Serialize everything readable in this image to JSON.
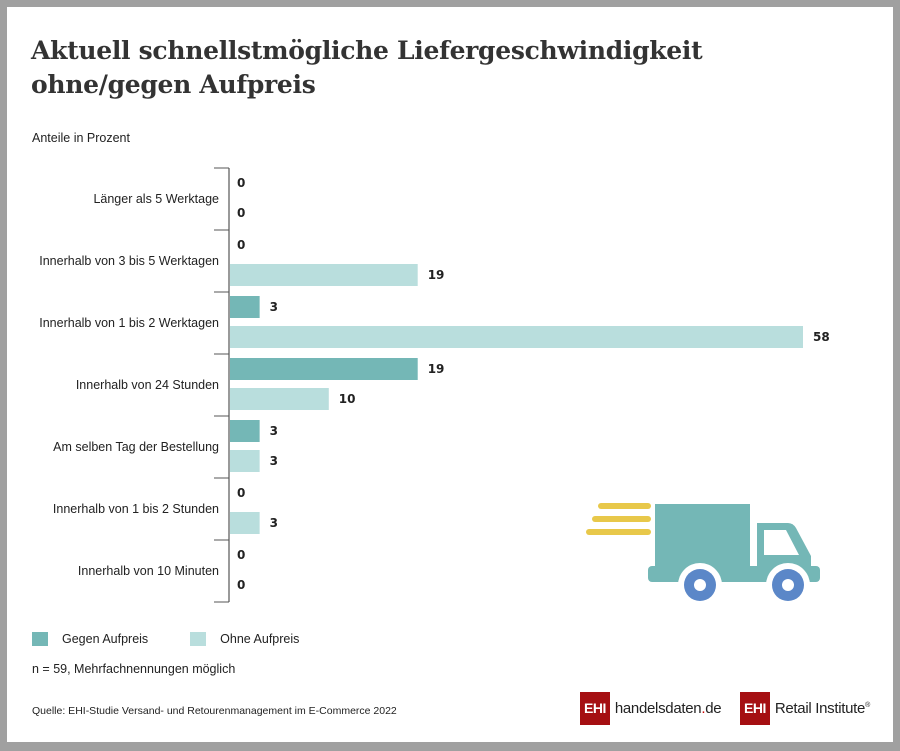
{
  "title_line1": "Aktuell schnellstmögliche Liefergeschwindigkeit",
  "title_line2": "ohne/gegen Aufpreis",
  "subtitle": "Anteile in Prozent",
  "chart_data": {
    "type": "bar",
    "orientation": "horizontal",
    "title": "Aktuell schnellstmögliche Liefergeschwindigkeit ohne/gegen Aufpreis",
    "xlabel": "",
    "ylabel": "Anteile in Prozent",
    "categories": [
      "Länger als 5 Werktage",
      "Innerhalb von 3 bis 5 Werktagen",
      "Innerhalb von 1 bis 2 Werktagen",
      "Innerhalb von 24 Stunden",
      "Am selben Tag der Bestellung",
      "Innerhalb von 1 bis 2 Stunden",
      "Innerhalb von 10 Minuten"
    ],
    "series": [
      {
        "name": "Gegen Aufpreis",
        "color": "#74b7b6",
        "values": [
          0,
          0,
          3,
          19,
          3,
          0,
          0
        ]
      },
      {
        "name": "Ohne Aufpreis",
        "color": "#b9dedd",
        "values": [
          0,
          19,
          58,
          10,
          3,
          3,
          0
        ]
      }
    ],
    "xlim": [
      0,
      58
    ],
    "grid": false,
    "legend_position": "bottom-left"
  },
  "legend": {
    "series0": "Gegen Aufpreis",
    "series1": "Ohne Aufpreis"
  },
  "note": "n = 59, Mehrfachnennungen möglich",
  "source": "Quelle: EHI-Studie Versand- und Retourenmanagement im E-Commerce 2022",
  "logos": {
    "ehi": "EHI",
    "handelsdaten_a": "handelsdaten",
    "handelsdaten_dot": ".",
    "handelsdaten_b": "de",
    "retail": "Retail Institute",
    "reg": "®"
  },
  "icons": {
    "truck": "delivery-truck-icon"
  }
}
